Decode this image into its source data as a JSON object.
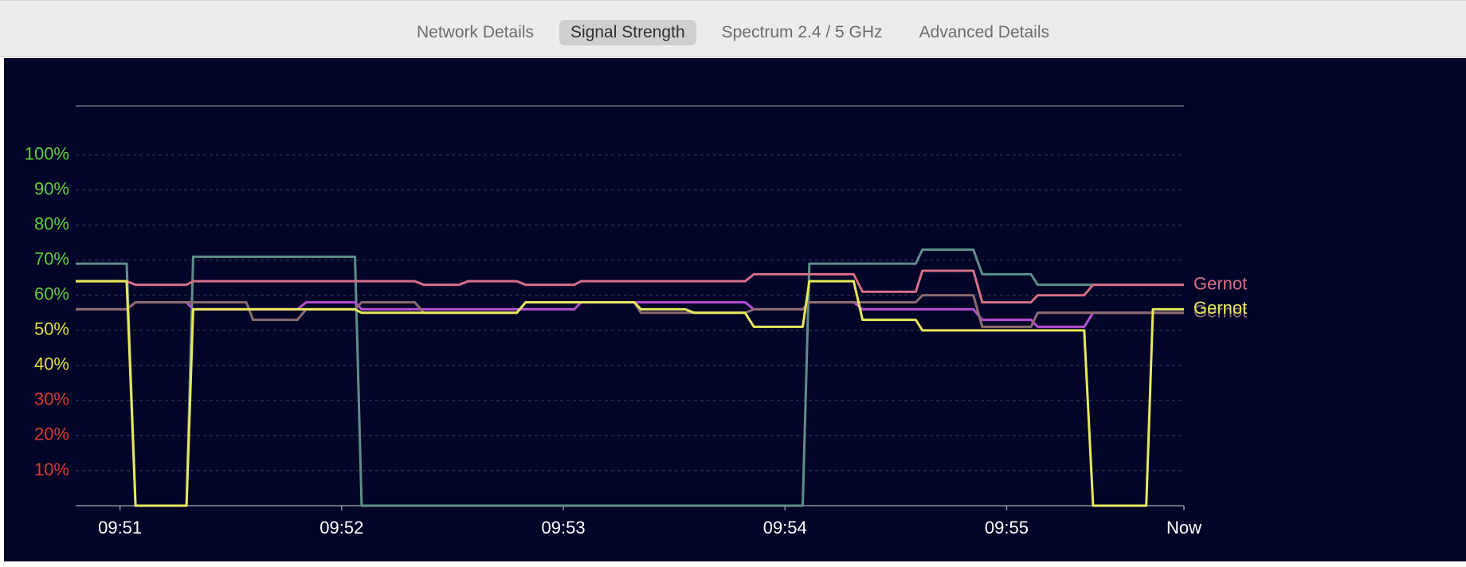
{
  "tabs": [
    "Network Details",
    "Signal Strength",
    "Spectrum 2.4 / 5 GHz",
    "Advanced Details"
  ],
  "active_tab": 1,
  "chart_data": {
    "type": "line",
    "xlim": [
      590.8,
      595.8
    ],
    "xticks": [
      {
        "value": 591,
        "label": "09:51"
      },
      {
        "value": 592,
        "label": "09:52"
      },
      {
        "value": 593,
        "label": "09:53"
      },
      {
        "value": 594,
        "label": "09:54"
      },
      {
        "value": 595,
        "label": "09:55"
      },
      {
        "value": 595.8,
        "label": "Now"
      }
    ],
    "ylim": [
      0,
      114
    ],
    "yticks": [
      {
        "value": 10,
        "label": "10%",
        "color": "#d93a2f"
      },
      {
        "value": 20,
        "label": "20%",
        "color": "#d93a2f"
      },
      {
        "value": 30,
        "label": "30%",
        "color": "#d93a2f"
      },
      {
        "value": 40,
        "label": "40%",
        "color": "#e2df3a"
      },
      {
        "value": 50,
        "label": "50%",
        "color": "#e2df3a"
      },
      {
        "value": 60,
        "label": "60%",
        "color": "#5fcf3e"
      },
      {
        "value": 70,
        "label": "70%",
        "color": "#5fcf3e"
      },
      {
        "value": 80,
        "label": "80%",
        "color": "#5fcf3e"
      },
      {
        "value": 90,
        "label": "90%",
        "color": "#5fcf3e"
      },
      {
        "value": 100,
        "label": "100%",
        "color": "#5fcf3e"
      }
    ],
    "grid": true,
    "series": [
      {
        "color": "#5e8e8a",
        "x": [
          590.8,
          591.03,
          591.07,
          591.3,
          591.33,
          592.06,
          592.09,
          594.08,
          594.11,
          594.59,
          594.62,
          594.85,
          594.89,
          595.11,
          595.14,
          595.8
        ],
        "values": [
          69,
          69,
          0,
          0,
          71,
          71,
          0,
          0,
          69,
          69,
          73,
          73,
          66,
          66,
          63,
          63
        ]
      },
      {
        "name": "Gernot",
        "color": "#d46f86",
        "x": [
          590.8,
          591.03,
          591.07,
          591.3,
          591.33,
          592.33,
          592.37,
          592.53,
          592.57,
          592.79,
          592.83,
          593.05,
          593.08,
          593.82,
          593.86,
          594.31,
          594.35,
          594.59,
          594.62,
          594.85,
          594.89,
          595.11,
          595.14,
          595.35,
          595.39,
          595.8
        ],
        "values": [
          64,
          64,
          63,
          63,
          64,
          64,
          63,
          63,
          64,
          64,
          63,
          63,
          64,
          64,
          66,
          66,
          61,
          61,
          67,
          67,
          58,
          58,
          60,
          60,
          63,
          63
        ]
      },
      {
        "color": "#b54fd2",
        "x": [
          590.8,
          591.03,
          591.07,
          591.3,
          591.33,
          591.8,
          591.84,
          592.06,
          592.09,
          593.05,
          593.08,
          593.82,
          593.86,
          594.08,
          594.11,
          594.31,
          594.35,
          594.85,
          594.89,
          595.11,
          595.14,
          595.35,
          595.39,
          595.8
        ],
        "values": [
          56,
          56,
          58,
          58,
          56,
          56,
          58,
          58,
          56,
          56,
          58,
          58,
          56,
          56,
          58,
          58,
          56,
          56,
          53,
          53,
          51,
          51,
          55,
          55
        ]
      },
      {
        "name": "Gernot",
        "color": "#8c6c70",
        "x": [
          590.8,
          591.03,
          591.07,
          591.57,
          591.6,
          591.8,
          591.84,
          592.06,
          592.09,
          592.33,
          592.37,
          592.79,
          592.83,
          593.32,
          593.35,
          593.82,
          593.86,
          594.08,
          594.11,
          594.59,
          594.62,
          594.85,
          594.89,
          595.11,
          595.14,
          595.8
        ],
        "values": [
          56,
          56,
          58,
          58,
          53,
          53,
          56,
          56,
          58,
          58,
          55,
          55,
          58,
          58,
          55,
          55,
          56,
          56,
          58,
          58,
          60,
          60,
          51,
          51,
          55,
          55
        ]
      },
      {
        "name": "Gernot",
        "color": "#e8e85c",
        "x": [
          590.8,
          591.03,
          591.07,
          591.3,
          591.33,
          592.06,
          592.09,
          592.79,
          592.83,
          593.32,
          593.35,
          593.55,
          593.59,
          593.82,
          593.86,
          594.08,
          594.11,
          594.31,
          594.35,
          594.59,
          594.62,
          595.35,
          595.39,
          595.63,
          595.66,
          595.8
        ],
        "values": [
          64,
          64,
          0,
          0,
          56,
          56,
          55,
          55,
          58,
          58,
          56,
          56,
          55,
          55,
          51,
          51,
          64,
          64,
          53,
          53,
          50,
          50,
          0,
          0,
          56,
          56
        ]
      }
    ]
  }
}
